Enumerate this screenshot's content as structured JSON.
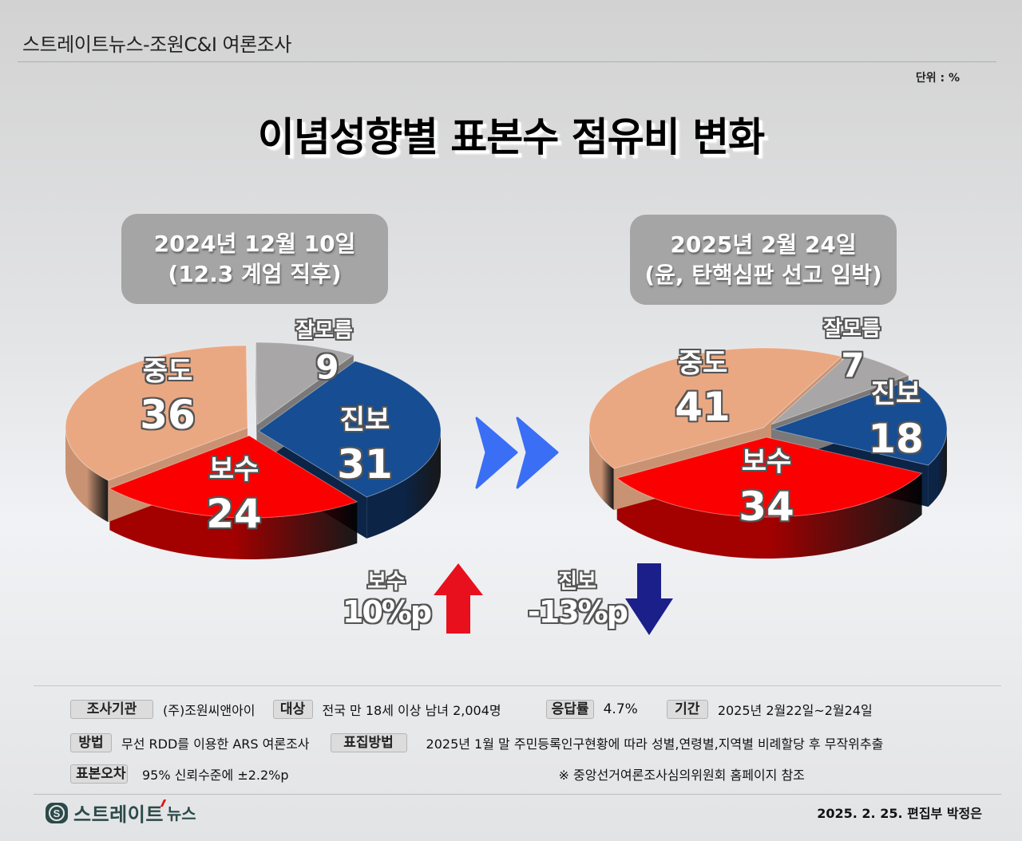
{
  "header": {
    "source_title": "스트레이트뉴스-조원C&I 여론조사",
    "unit": "단위 : %",
    "main_title": "이념성향별 표본수 점유비 변화"
  },
  "left_panel": {
    "date_line1": "2024년 12월 10일",
    "date_line2": "(12.3 계엄 직후)"
  },
  "right_panel": {
    "date_line1": "2025년 2월 24일",
    "date_line2": "(윤, 탄핵심판 선고 임박)"
  },
  "colors": {
    "progressive": "#164d93",
    "progressive_side": "#0c2446",
    "unknown": "#a8a6a6",
    "unknown_side": "#7a7878",
    "moderate": "#eaa882",
    "moderate_side": "#c99373",
    "conservative": "#fb0000",
    "conservative_side": "#a30000",
    "arrow_forward": "#3a6ef5",
    "arrow_up": "#e8101c",
    "arrow_down": "#1b1f8a"
  },
  "chart_data": [
    {
      "type": "pie",
      "title": "2024년 12월 10일 (12.3 계엄 직후)",
      "categories": [
        "진보",
        "보수",
        "중도",
        "잘모름"
      ],
      "values": [
        31,
        24,
        36,
        9
      ],
      "unit": "%"
    },
    {
      "type": "pie",
      "title": "2025년 2월 24일 (윤, 탄핵심판 선고 임박)",
      "categories": [
        "진보",
        "보수",
        "중도",
        "잘모름"
      ],
      "values": [
        18,
        34,
        41,
        7
      ],
      "unit": "%"
    }
  ],
  "pies": {
    "left": {
      "labels": {
        "progressive": "진보",
        "progressive_val": "31",
        "conservative": "보수",
        "conservative_val": "24",
        "moderate": "중도",
        "moderate_val": "36",
        "unknown": "잘모름",
        "unknown_val": "9"
      }
    },
    "right": {
      "labels": {
        "progressive": "진보",
        "progressive_val": "18",
        "conservative": "보수",
        "conservative_val": "34",
        "moderate": "중도",
        "moderate_val": "41",
        "unknown": "잘모름",
        "unknown_val": "7"
      }
    }
  },
  "changes": {
    "conservative": {
      "label": "보수",
      "value": "10%p",
      "direction": "up"
    },
    "progressive": {
      "label": "진보",
      "value": "-13%p",
      "direction": "down"
    }
  },
  "survey_info": {
    "agency_tag": "조사기관",
    "agency": "(주)조원씨앤아이",
    "target_tag": "대상",
    "target": "전국 만 18세 이상 남녀 2,004명",
    "response_tag": "응답률",
    "response": "4.7%",
    "period_tag": "기간",
    "period": "2025년 2월22일~2월24일",
    "method_tag": "방법",
    "method": "무선 RDD를 이용한 ARS 여론조사",
    "sampling_tag": "표집방법",
    "sampling": "2025년 1월 말 주민등록인구현황에 따라 성별,연령별,지역별 비례할당 후 무작위추출",
    "error_tag": "표본오차",
    "error": "95% 신뢰수준에 ±2.2%p",
    "note": "※ 중앙선거여론조사심의위원회 홈페이지 참조"
  },
  "footer": {
    "logo_main": "스트레이트",
    "logo_sub": "뉴스",
    "credit": "2025. 2. 25. 편집부 박정은"
  }
}
